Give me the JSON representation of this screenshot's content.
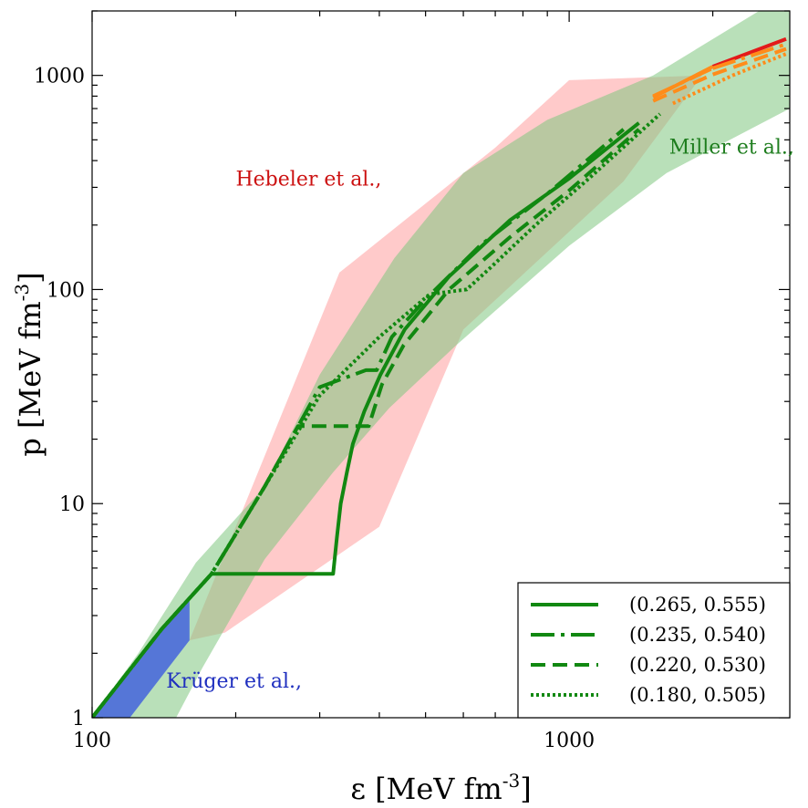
{
  "chart_data": {
    "type": "line",
    "title": "",
    "xlabel": "ε [MeV fm-3]",
    "ylabel": "p [MeV fm-3]",
    "xlabel_parts": {
      "main": "ε [MeV fm",
      "sup": "-3",
      "close": "]"
    },
    "ylabel_parts": {
      "main": "p [MeV fm",
      "sup": "-3",
      "close": "]"
    },
    "xscale": "log",
    "yscale": "log",
    "xlim": [
      100,
      2900
    ],
    "ylim": [
      1,
      2000
    ],
    "xticks": [
      {
        "value": 100,
        "label": "100"
      },
      {
        "value": 1000,
        "label": "1000"
      }
    ],
    "yticks": [
      {
        "value": 1,
        "label": "1"
      },
      {
        "value": 10,
        "label": "10"
      },
      {
        "value": 100,
        "label": "100"
      },
      {
        "value": 1000,
        "label": "1000"
      }
    ],
    "legend_position": "lower right",
    "bands": [
      {
        "name": "Hebeler et al.,",
        "color": "#ff9e9e",
        "opacity": 0.55,
        "polygon": [
          [
            160,
            2.3
          ],
          [
            330,
            120
          ],
          [
            700,
            460
          ],
          [
            1000,
            950
          ],
          [
            1900,
            1000
          ],
          [
            1300,
            320
          ],
          [
            600,
            65
          ],
          [
            400,
            7.8
          ],
          [
            190,
            2.5
          ]
        ]
      },
      {
        "name": "Miller et al.,",
        "color": "#7fc77f",
        "opacity": 0.55,
        "polygon": [
          [
            100,
            1.0
          ],
          [
            125,
            2.0
          ],
          [
            165,
            5.3
          ],
          [
            230,
            12
          ],
          [
            300,
            40
          ],
          [
            430,
            140
          ],
          [
            600,
            350
          ],
          [
            900,
            620
          ],
          [
            1500,
            1000
          ],
          [
            2500,
            2000
          ],
          [
            2900,
            2000
          ],
          [
            2900,
            700
          ],
          [
            1600,
            350
          ],
          [
            1000,
            160
          ],
          [
            580,
            55
          ],
          [
            420,
            28
          ],
          [
            320,
            14
          ],
          [
            230,
            5.5
          ],
          [
            170,
            1.7
          ],
          [
            150,
            1.0
          ]
        ]
      },
      {
        "name": "Krüger et al.,",
        "color": "#1f3ee6",
        "opacity": 0.65,
        "polygon": [
          [
            100,
            1.0
          ],
          [
            160,
            3.7
          ],
          [
            160,
            2.3
          ],
          [
            120,
            1.0
          ]
        ]
      }
    ],
    "band_labels": [
      {
        "text": "Hebeler et al.,",
        "color": "#cc1111",
        "x": 200,
        "y": 305
      },
      {
        "text": "Miller et al.,",
        "color": "#1e7d1e",
        "x": 1620,
        "y": 430
      },
      {
        "text": "Krüger et al.,",
        "color": "#1f2fbf",
        "x": 143,
        "y": 1.38
      }
    ],
    "series": [
      {
        "name": "(0.265, 0.555)",
        "style": "solid",
        "color": "#118811",
        "points": [
          [
            100,
            1.0
          ],
          [
            140,
            2.6
          ],
          [
            178,
            4.7
          ],
          [
            320,
            4.7
          ],
          [
            326,
            7
          ],
          [
            332,
            10
          ],
          [
            342,
            14
          ],
          [
            352,
            19
          ],
          [
            372,
            27
          ],
          [
            402,
            40
          ],
          [
            452,
            65
          ],
          [
            560,
            115
          ],
          [
            750,
            210
          ],
          [
            1000,
            330
          ],
          [
            1400,
            600
          ]
        ],
        "tail": [
          [
            1500,
            790
          ],
          [
            2000,
            1100
          ],
          [
            2850,
            1480
          ]
        ]
      },
      {
        "name": "(0.235, 0.540)",
        "style": "dashdot",
        "color": "#118811",
        "points": [
          [
            100,
            1.0
          ],
          [
            140,
            2.6
          ],
          [
            178,
            4.7
          ],
          [
            230,
            12
          ],
          [
            300,
            35
          ],
          [
            375,
            42
          ],
          [
            395,
            42
          ],
          [
            425,
            60
          ],
          [
            500,
            90
          ],
          [
            650,
            160
          ],
          [
            900,
            280
          ],
          [
            1300,
            560
          ]
        ],
        "tail": [
          [
            1500,
            800
          ],
          [
            2000,
            1080
          ],
          [
            2850,
            1400
          ]
        ]
      },
      {
        "name": "(0.220, 0.530)",
        "style": "dashed",
        "color": "#118811",
        "points": [
          [
            100,
            1.0
          ],
          [
            140,
            2.6
          ],
          [
            178,
            4.7
          ],
          [
            230,
            12
          ],
          [
            270,
            23
          ],
          [
            380,
            23
          ],
          [
            405,
            36
          ],
          [
            450,
            55
          ],
          [
            560,
            100
          ],
          [
            750,
            175
          ],
          [
            1000,
            290
          ],
          [
            1400,
            560
          ]
        ],
        "tail": [
          [
            1500,
            760
          ],
          [
            2000,
            1010
          ],
          [
            2850,
            1330
          ]
        ]
      },
      {
        "name": "(0.180, 0.505)",
        "style": "dotted",
        "color": "#118811",
        "points": [
          [
            100,
            1.0
          ],
          [
            140,
            2.6
          ],
          [
            178,
            4.7
          ],
          [
            230,
            12
          ],
          [
            300,
            32
          ],
          [
            400,
            60
          ],
          [
            510,
            95
          ],
          [
            610,
            100
          ],
          [
            680,
            125
          ],
          [
            850,
            200
          ],
          [
            1100,
            330
          ],
          [
            1550,
            660
          ]
        ],
        "tail": [
          [
            1650,
            740
          ],
          [
            2200,
            1000
          ],
          [
            2850,
            1260
          ]
        ]
      }
    ]
  }
}
